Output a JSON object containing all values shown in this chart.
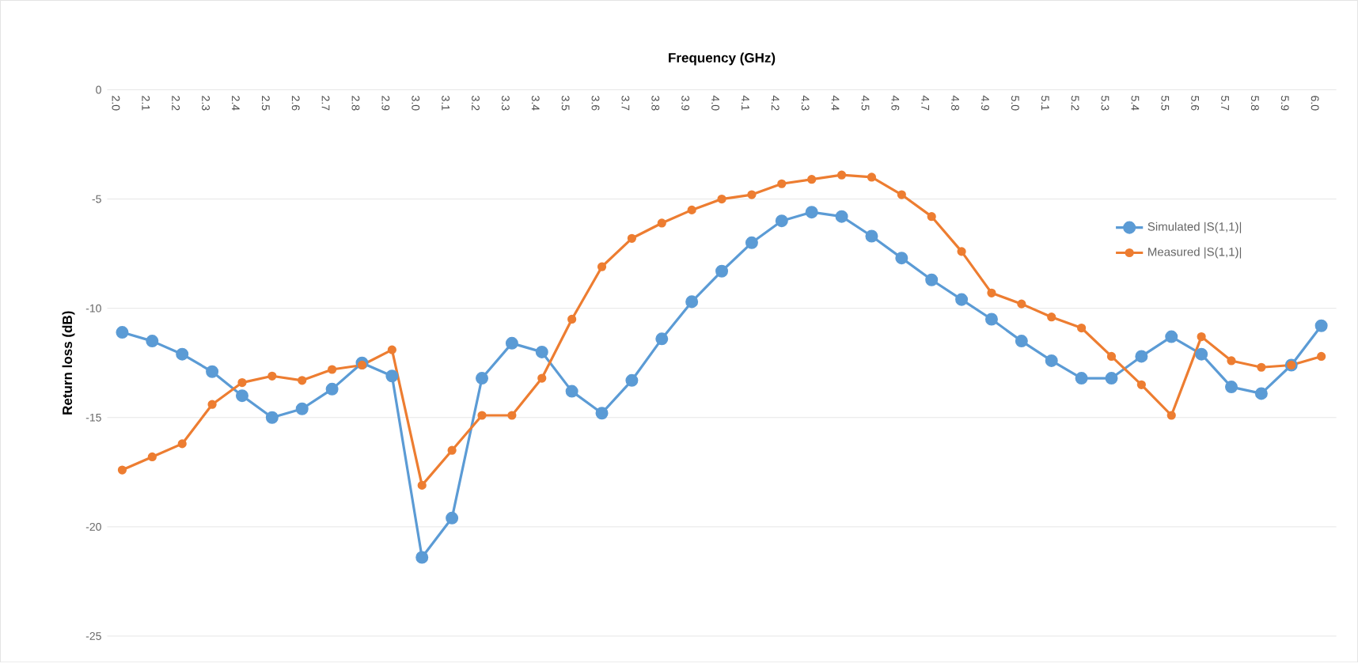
{
  "chart_data": {
    "type": "line",
    "xlabel": "Frequency (GHz)",
    "ylabel": "Return loss (dB)",
    "categories": [
      "2.0",
      "2.1",
      "2.2",
      "2.3",
      "2.4",
      "2.5",
      "2.6",
      "2.7",
      "2.8",
      "2.9",
      "3.0",
      "3.1",
      "3.2",
      "3.3",
      "3.4",
      "3.5",
      "3.6",
      "3.7",
      "3.8",
      "3.9",
      "4.0",
      "4.1",
      "4.2",
      "4.3",
      "4.4",
      "4.5",
      "4.6",
      "4.7",
      "4.8",
      "4.9",
      "5.0",
      "5.1",
      "5.2",
      "5.3",
      "5.4",
      "5.5",
      "5.6",
      "5.7",
      "5.8",
      "5.9",
      "6.0"
    ],
    "series": [
      {
        "name": "Simulated |S(1,1)|",
        "color": "#5b9bd5",
        "values": [
          -11.1,
          -11.5,
          -12.1,
          -12.9,
          -14.0,
          -15.0,
          -14.6,
          -13.7,
          -12.5,
          -13.1,
          -21.4,
          -19.6,
          -13.2,
          -11.6,
          -12.0,
          -13.8,
          -14.8,
          -13.3,
          -11.4,
          -9.7,
          -8.3,
          -7.0,
          -6.0,
          -5.6,
          -5.8,
          -6.7,
          -7.7,
          -8.7,
          -9.6,
          -10.5,
          -11.5,
          -12.4,
          -13.2,
          -13.2,
          -12.2,
          -11.3,
          -12.1,
          -13.6,
          -13.9,
          -12.6,
          -10.8
        ]
      },
      {
        "name": "Measured |S(1,1)|",
        "color": "#ed7d31",
        "values": [
          -17.4,
          -16.8,
          -16.2,
          -14.4,
          -13.4,
          -13.1,
          -13.3,
          -12.8,
          -12.6,
          -11.9,
          -18.1,
          -16.5,
          -14.9,
          -14.9,
          -13.2,
          -10.5,
          -8.1,
          -6.8,
          -6.1,
          -5.5,
          -5.0,
          -4.8,
          -4.3,
          -4.1,
          -3.9,
          -4.0,
          -4.8,
          -5.8,
          -7.4,
          -9.3,
          -9.8,
          -10.4,
          -10.9,
          -12.2,
          -13.5,
          -14.9,
          -11.3,
          -12.4,
          -12.7,
          -12.6,
          -12.2
        ]
      }
    ],
    "ylim": [
      -25,
      0
    ],
    "yticks": [
      -25,
      -20,
      -15,
      -10,
      -5,
      0
    ],
    "grid": "y",
    "legend": "top right",
    "marker": "circle",
    "line_style": "solid"
  }
}
